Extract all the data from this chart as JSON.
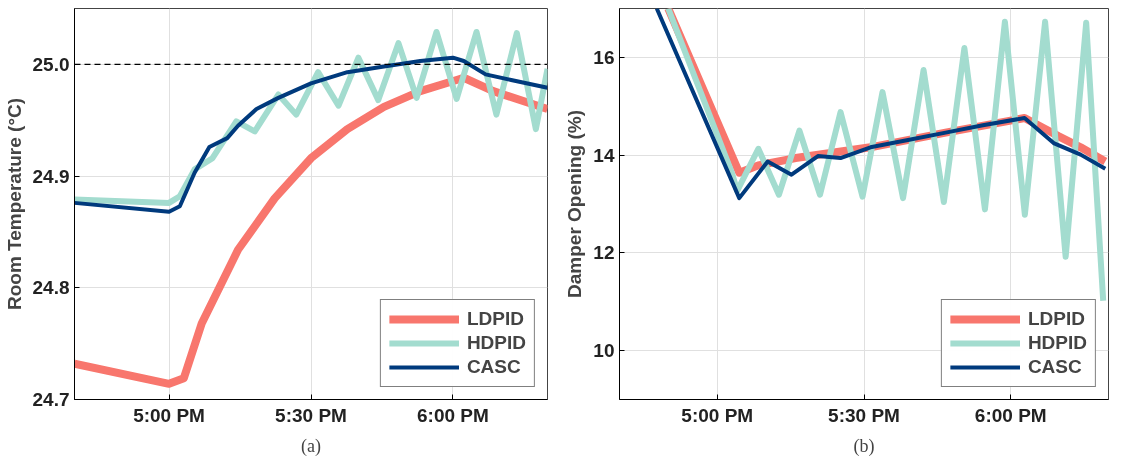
{
  "chart_data": [
    {
      "type": "line",
      "ylabel": "Room Temperature (°C)",
      "annotations": [
        "(a)"
      ],
      "xlim": [
        16.667,
        18.333
      ],
      "ylim": [
        24.7,
        25.05
      ],
      "xticks": [
        {
          "value": 17,
          "label": "5:00 PM"
        },
        {
          "value": 17.5,
          "label": "5:30 PM"
        },
        {
          "value": 18,
          "label": "6:00 PM"
        }
      ],
      "yticks": [
        {
          "value": 24.7,
          "label": "24.7"
        },
        {
          "value": 24.8,
          "label": "24.8"
        },
        {
          "value": 24.9,
          "label": "24.9"
        },
        {
          "value": 25.0,
          "label": "25.0"
        }
      ],
      "grid": true,
      "legend": "bottom right",
      "line_style": "solid",
      "marker": "none",
      "ref_lines": [
        {
          "axis": "y",
          "value": 25.0,
          "color": "#000000",
          "line_style": "dashed"
        }
      ],
      "series": [
        {
          "name": "LDPID",
          "color": "#f8766d",
          "x": [
            16.667,
            17.0,
            17.052,
            17.115,
            17.243,
            17.372,
            17.5,
            17.628,
            17.757,
            17.885,
            18.013,
            18.038,
            18.142,
            18.333
          ],
          "values": [
            24.732,
            24.714,
            24.719,
            24.768,
            24.834,
            24.88,
            24.916,
            24.942,
            24.962,
            24.976,
            24.986,
            24.988,
            24.976,
            24.96
          ]
        },
        {
          "name": "HDPID",
          "color": "#a3dccf",
          "x": [
            16.667,
            17.0,
            17.038,
            17.09,
            17.153,
            17.237,
            17.302,
            17.385,
            17.448,
            17.525,
            17.597,
            17.667,
            17.737,
            17.808,
            17.872,
            17.942,
            18.013,
            18.083,
            18.153,
            18.225,
            18.292,
            18.333
          ],
          "values": [
            24.879,
            24.876,
            24.882,
            24.906,
            24.916,
            24.949,
            24.94,
            24.973,
            24.955,
            24.993,
            24.963,
            25.006,
            24.968,
            25.019,
            24.97,
            25.029,
            24.969,
            25.029,
            24.955,
            25.028,
            24.942,
            24.996
          ]
        },
        {
          "name": "CASC",
          "color": "#003a7d",
          "x": [
            16.667,
            17.0,
            17.038,
            17.09,
            17.142,
            17.205,
            17.243,
            17.308,
            17.385,
            17.5,
            17.628,
            17.757,
            17.885,
            18.0,
            18.038,
            18.115,
            18.205,
            18.333
          ],
          "values": [
            24.876,
            24.868,
            24.873,
            24.903,
            24.926,
            24.934,
            24.945,
            24.96,
            24.97,
            24.983,
            24.993,
            24.998,
            25.003,
            25.006,
            25.003,
            24.991,
            24.986,
            24.979
          ]
        }
      ]
    },
    {
      "type": "line",
      "ylabel": "Damper Opening (%)",
      "annotations": [
        "(b)"
      ],
      "xlim": [
        16.667,
        18.333
      ],
      "ylim": [
        9,
        17
      ],
      "xticks": [
        {
          "value": 17,
          "label": "5:00 PM"
        },
        {
          "value": 17.5,
          "label": "5:30 PM"
        },
        {
          "value": 18,
          "label": "6:00 PM"
        }
      ],
      "yticks": [
        10,
        12,
        14,
        16
      ],
      "grid": true,
      "legend": "bottom right",
      "line_style": "solid",
      "marker": "none",
      "series": [
        {
          "name": "LDPID",
          "color": "#f8766d",
          "x": [
            16.833,
            17.075,
            17.14,
            17.267,
            17.522,
            17.778,
            18.047,
            18.162,
            18.238,
            18.322
          ],
          "values": [
            17.0,
            13.64,
            13.79,
            13.94,
            14.16,
            14.46,
            14.76,
            14.39,
            14.16,
            13.87
          ]
        },
        {
          "name": "HDPID",
          "color": "#a3dccf",
          "x": [
            16.833,
            17.05,
            17.068,
            17.14,
            17.21,
            17.28,
            17.35,
            17.42,
            17.495,
            17.563,
            17.633,
            17.703,
            17.772,
            17.842,
            17.912,
            17.98,
            18.048,
            18.117,
            18.187,
            18.257,
            18.315
          ],
          "values": [
            17.0,
            13.64,
            13.27,
            14.13,
            13.19,
            14.5,
            13.19,
            14.88,
            13.15,
            15.29,
            13.12,
            15.74,
            13.04,
            16.19,
            12.89,
            16.73,
            12.78,
            16.73,
            11.92,
            16.71,
            11.02
          ]
        },
        {
          "name": "CASC",
          "color": "#003a7d",
          "x": [
            16.794,
            17.075,
            17.172,
            17.253,
            17.343,
            17.42,
            17.522,
            17.65,
            17.778,
            17.905,
            18.047,
            18.148,
            18.238,
            18.322
          ],
          "values": [
            17.0,
            13.12,
            13.87,
            13.6,
            13.98,
            13.94,
            14.16,
            14.31,
            14.46,
            14.61,
            14.76,
            14.24,
            14.01,
            13.72
          ]
        }
      ]
    }
  ]
}
